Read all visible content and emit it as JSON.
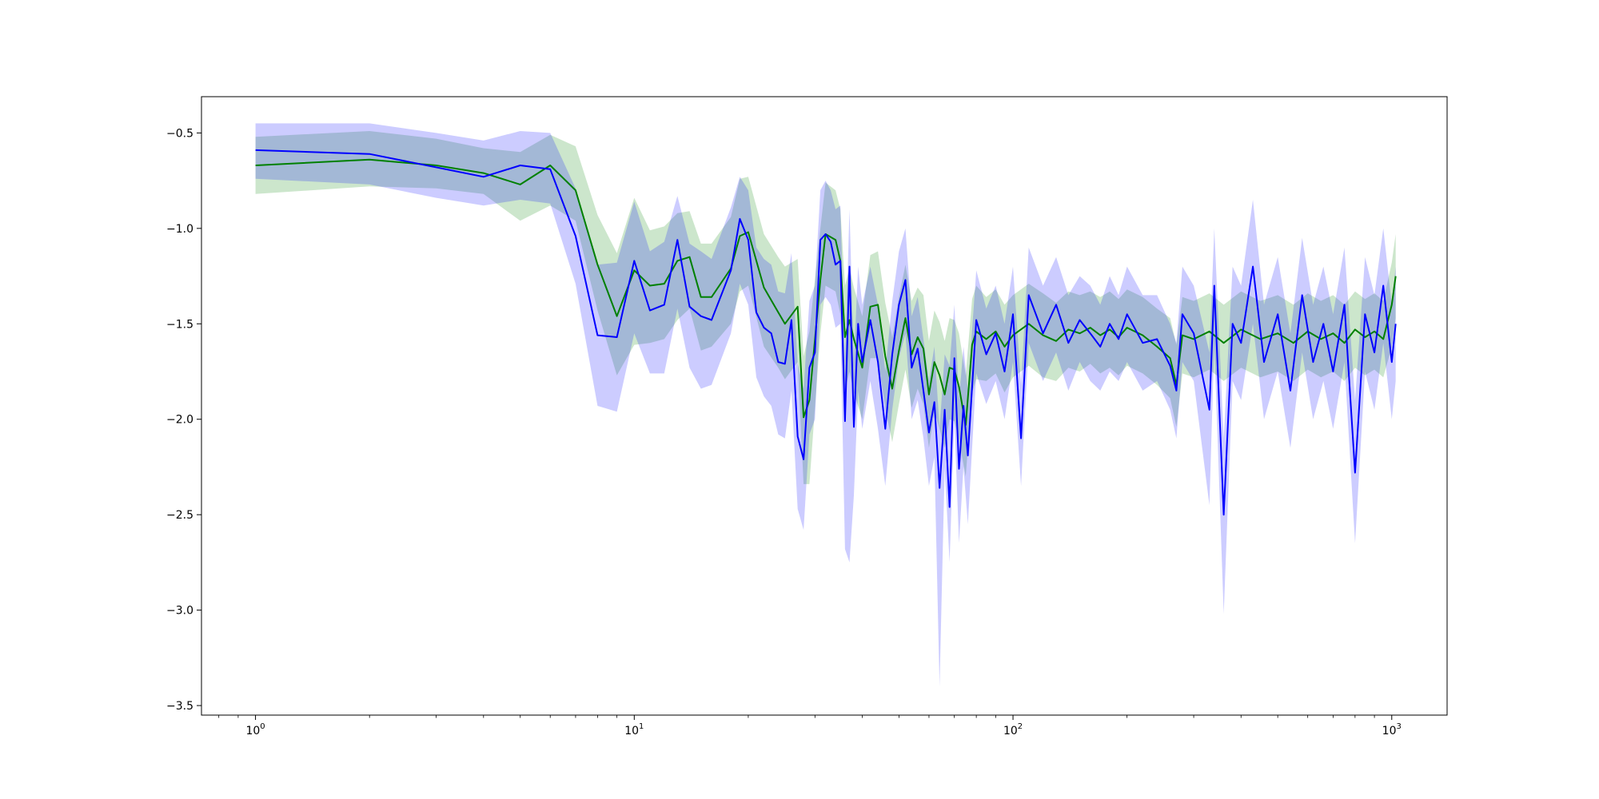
{
  "chart_data": {
    "type": "line",
    "title": "",
    "xlabel": "",
    "ylabel": "",
    "xscale": "log",
    "xlim": [
      0.72,
      1400
    ],
    "ylim": [
      -3.55,
      -0.31
    ],
    "grid": false,
    "legend": "none",
    "x_ticks": [
      {
        "value": 1,
        "base": "10",
        "exp": "0"
      },
      {
        "value": 10,
        "base": "10",
        "exp": "1"
      },
      {
        "value": 100,
        "base": "10",
        "exp": "2"
      },
      {
        "value": 1000,
        "base": "10",
        "exp": "3"
      }
    ],
    "y_ticks": [
      {
        "value": -0.5,
        "label": "−0.5"
      },
      {
        "value": -1.0,
        "label": "−1.0"
      },
      {
        "value": -1.5,
        "label": "−1.5"
      },
      {
        "value": -2.0,
        "label": "−2.0"
      },
      {
        "value": -2.5,
        "label": "−2.5"
      },
      {
        "value": -3.0,
        "label": "−3.0"
      },
      {
        "value": -3.5,
        "label": "−3.5"
      }
    ],
    "series": [
      {
        "color": "#008000",
        "band_color": "#008000",
        "band_opacity": 0.2,
        "points": [
          [
            1,
            -0.67,
            -0.82,
            -0.52
          ],
          [
            2,
            -0.64,
            -0.78,
            -0.49
          ],
          [
            3,
            -0.67,
            -0.79,
            -0.53
          ],
          [
            4,
            -0.71,
            -0.82,
            -0.58
          ],
          [
            5,
            -0.77,
            -0.96,
            -0.6
          ],
          [
            6,
            -0.67,
            -0.88,
            -0.51
          ],
          [
            7,
            -0.8,
            -0.96,
            -0.57
          ],
          [
            8,
            -1.19,
            -1.43,
            -0.93
          ],
          [
            9,
            -1.46,
            -1.77,
            -1.13
          ],
          [
            10,
            -1.22,
            -1.61,
            -0.84
          ],
          [
            11,
            -1.3,
            -1.6,
            -1.01
          ],
          [
            12,
            -1.29,
            -1.58,
            -0.99
          ],
          [
            13,
            -1.17,
            -1.48,
            -0.92
          ],
          [
            14,
            -1.15,
            -1.42,
            -0.91
          ],
          [
            15,
            -1.36,
            -1.64,
            -1.08
          ],
          [
            16,
            -1.36,
            -1.62,
            -1.08
          ],
          [
            18,
            -1.21,
            -1.5,
            -0.94
          ],
          [
            19,
            -1.04,
            -1.33,
            -0.74
          ],
          [
            20,
            -1.02,
            -1.3,
            -0.73
          ],
          [
            22,
            -1.31,
            -1.62,
            -1.03
          ],
          [
            24,
            -1.44,
            -1.73,
            -1.15
          ],
          [
            25,
            -1.5,
            -1.79,
            -1.2
          ],
          [
            27,
            -1.41,
            -1.7,
            -1.16
          ],
          [
            28,
            -1.99,
            -2.34,
            -1.67
          ],
          [
            29,
            -1.9,
            -2.34,
            -1.54
          ],
          [
            31,
            -1.27,
            -1.55,
            -1.0
          ],
          [
            32,
            -1.03,
            -1.3,
            -0.76
          ],
          [
            34,
            -1.06,
            -1.33,
            -0.8
          ],
          [
            35,
            -1.17,
            -1.45,
            -0.9
          ],
          [
            36,
            -1.57,
            -1.85,
            -1.3
          ],
          [
            37,
            -1.48,
            -1.75,
            -1.21
          ],
          [
            38,
            -1.58,
            -1.86,
            -1.31
          ],
          [
            40,
            -1.73,
            -2.0,
            -1.46
          ],
          [
            42,
            -1.41,
            -1.68,
            -1.14
          ],
          [
            44,
            -1.4,
            -1.68,
            -1.12
          ],
          [
            46,
            -1.67,
            -1.94,
            -1.39
          ],
          [
            48,
            -1.84,
            -2.12,
            -1.57
          ],
          [
            50,
            -1.64,
            -1.92,
            -1.36
          ],
          [
            52,
            -1.47,
            -1.74,
            -1.19
          ],
          [
            54,
            -1.66,
            -1.94,
            -1.38
          ],
          [
            56,
            -1.57,
            -1.84,
            -1.31
          ],
          [
            58,
            -1.63,
            -1.92,
            -1.35
          ],
          [
            60,
            -1.87,
            -2.15,
            -1.59
          ],
          [
            62,
            -1.7,
            -1.96,
            -1.43
          ],
          [
            64,
            -1.77,
            -2.05,
            -1.49
          ],
          [
            66,
            -1.87,
            -2.15,
            -1.59
          ],
          [
            68,
            -1.73,
            -2.0,
            -1.47
          ],
          [
            70,
            -1.74,
            -2.01,
            -1.48
          ],
          [
            72,
            -1.83,
            -2.11,
            -1.55
          ],
          [
            75,
            -2.03,
            -2.3,
            -1.77
          ],
          [
            78,
            -1.61,
            -1.86,
            -1.37
          ],
          [
            80,
            -1.54,
            -1.79,
            -1.3
          ],
          [
            85,
            -1.58,
            -1.8,
            -1.36
          ],
          [
            90,
            -1.54,
            -1.76,
            -1.32
          ],
          [
            95,
            -1.62,
            -1.86,
            -1.4
          ],
          [
            100,
            -1.56,
            -1.78,
            -1.35
          ],
          [
            110,
            -1.5,
            -1.72,
            -1.29
          ],
          [
            120,
            -1.56,
            -1.78,
            -1.34
          ],
          [
            130,
            -1.59,
            -1.8,
            -1.39
          ],
          [
            140,
            -1.53,
            -1.73,
            -1.33
          ],
          [
            150,
            -1.55,
            -1.75,
            -1.35
          ],
          [
            160,
            -1.52,
            -1.71,
            -1.33
          ],
          [
            170,
            -1.56,
            -1.76,
            -1.36
          ],
          [
            180,
            -1.53,
            -1.73,
            -1.33
          ],
          [
            190,
            -1.57,
            -1.77,
            -1.37
          ],
          [
            200,
            -1.52,
            -1.72,
            -1.32
          ],
          [
            220,
            -1.56,
            -1.76,
            -1.36
          ],
          [
            240,
            -1.62,
            -1.82,
            -1.42
          ],
          [
            260,
            -1.68,
            -1.89,
            -1.47
          ],
          [
            270,
            -1.82,
            -2.04,
            -1.61
          ],
          [
            280,
            -1.56,
            -1.76,
            -1.36
          ],
          [
            300,
            -1.58,
            -1.78,
            -1.38
          ],
          [
            330,
            -1.54,
            -1.74,
            -1.34
          ],
          [
            360,
            -1.6,
            -1.8,
            -1.4
          ],
          [
            400,
            -1.53,
            -1.73,
            -1.33
          ],
          [
            450,
            -1.58,
            -1.78,
            -1.38
          ],
          [
            500,
            -1.55,
            -1.75,
            -1.35
          ],
          [
            550,
            -1.6,
            -1.8,
            -1.4
          ],
          [
            600,
            -1.54,
            -1.74,
            -1.34
          ],
          [
            650,
            -1.58,
            -1.78,
            -1.38
          ],
          [
            700,
            -1.55,
            -1.75,
            -1.35
          ],
          [
            750,
            -1.6,
            -1.8,
            -1.4
          ],
          [
            800,
            -1.53,
            -1.73,
            -1.33
          ],
          [
            850,
            -1.57,
            -1.77,
            -1.37
          ],
          [
            900,
            -1.54,
            -1.74,
            -1.34
          ],
          [
            950,
            -1.58,
            -1.78,
            -1.38
          ],
          [
            1000,
            -1.4,
            -1.62,
            -1.18
          ],
          [
            1024,
            -1.25,
            -1.47,
            -1.03
          ]
        ]
      },
      {
        "color": "#0000ff",
        "band_color": "#0000ff",
        "band_opacity": 0.2,
        "points": [
          [
            1,
            -0.59,
            -0.74,
            -0.45
          ],
          [
            2,
            -0.61,
            -0.77,
            -0.45
          ],
          [
            3,
            -0.68,
            -0.84,
            -0.5
          ],
          [
            4,
            -0.73,
            -0.88,
            -0.54
          ],
          [
            5,
            -0.67,
            -0.85,
            -0.49
          ],
          [
            6,
            -0.69,
            -0.87,
            -0.5
          ],
          [
            7,
            -1.04,
            -1.29,
            -0.79
          ],
          [
            8,
            -1.56,
            -1.93,
            -1.19
          ],
          [
            9,
            -1.57,
            -1.96,
            -1.18
          ],
          [
            10,
            -1.17,
            -1.55,
            -0.86
          ],
          [
            11,
            -1.43,
            -1.76,
            -1.12
          ],
          [
            12,
            -1.4,
            -1.76,
            -1.07
          ],
          [
            13,
            -1.06,
            -1.42,
            -0.83
          ],
          [
            14,
            -1.41,
            -1.73,
            -1.08
          ],
          [
            15,
            -1.46,
            -1.84,
            -1.12
          ],
          [
            16,
            -1.48,
            -1.82,
            -1.16
          ],
          [
            18,
            -1.22,
            -1.55,
            -0.89
          ],
          [
            19,
            -0.95,
            -1.29,
            -0.73
          ],
          [
            20,
            -1.06,
            -1.4,
            -0.8
          ],
          [
            21,
            -1.44,
            -1.78,
            -1.1
          ],
          [
            22,
            -1.52,
            -1.88,
            -1.16
          ],
          [
            23,
            -1.55,
            -1.93,
            -1.19
          ],
          [
            24,
            -1.7,
            -2.08,
            -1.33
          ],
          [
            25,
            -1.71,
            -2.1,
            -1.34
          ],
          [
            26,
            -1.48,
            -1.85,
            -1.13
          ],
          [
            27,
            -2.09,
            -2.47,
            -1.71
          ],
          [
            28,
            -2.21,
            -2.58,
            -1.84
          ],
          [
            29,
            -1.73,
            -2.08,
            -1.38
          ],
          [
            30,
            -1.65,
            -2.0,
            -1.3
          ],
          [
            31,
            -1.06,
            -1.4,
            -0.8
          ],
          [
            32,
            -1.03,
            -1.36,
            -0.75
          ],
          [
            33,
            -1.07,
            -1.4,
            -0.8
          ],
          [
            34,
            -1.19,
            -1.52,
            -0.9
          ],
          [
            35,
            -1.17,
            -1.5,
            -0.88
          ],
          [
            36,
            -2.01,
            -2.68,
            -1.72
          ],
          [
            37,
            -1.2,
            -2.75,
            -0.9
          ],
          [
            38,
            -2.04,
            -2.4,
            -1.7
          ],
          [
            39,
            -1.5,
            -1.85,
            -1.2
          ],
          [
            40,
            -1.7,
            -2.05,
            -1.4
          ],
          [
            42,
            -1.48,
            -1.8,
            -1.2
          ],
          [
            44,
            -1.7,
            -2.05,
            -1.4
          ],
          [
            46,
            -2.05,
            -2.35,
            -1.75
          ],
          [
            48,
            -1.66,
            -1.95,
            -1.38
          ],
          [
            50,
            -1.4,
            -1.68,
            -1.12
          ],
          [
            52,
            -1.27,
            -1.55,
            -1.0
          ],
          [
            54,
            -1.73,
            -2.0,
            -1.46
          ],
          [
            56,
            -1.63,
            -1.9,
            -1.36
          ],
          [
            58,
            -1.85,
            -2.1,
            -1.58
          ],
          [
            60,
            -2.07,
            -2.35,
            -1.8
          ],
          [
            62,
            -1.91,
            -2.2,
            -1.62
          ],
          [
            64,
            -2.36,
            -3.4,
            -2.05
          ],
          [
            66,
            -1.95,
            -2.25,
            -1.66
          ],
          [
            68,
            -2.46,
            -2.75,
            -1.72
          ],
          [
            70,
            -1.68,
            -2.0,
            -1.4
          ],
          [
            72,
            -2.26,
            -2.65,
            -1.9
          ],
          [
            74,
            -1.93,
            -2.25,
            -1.62
          ],
          [
            76,
            -2.19,
            -2.55,
            -1.85
          ],
          [
            80,
            -1.48,
            -1.76,
            -1.22
          ],
          [
            85,
            -1.66,
            -1.92,
            -1.42
          ],
          [
            90,
            -1.55,
            -1.8,
            -1.3
          ],
          [
            95,
            -1.75,
            -2.0,
            -1.5
          ],
          [
            100,
            -1.45,
            -1.7,
            -1.2
          ],
          [
            105,
            -2.1,
            -2.35,
            -1.82
          ],
          [
            110,
            -1.35,
            -1.6,
            -1.1
          ],
          [
            120,
            -1.55,
            -1.8,
            -1.3
          ],
          [
            130,
            -1.4,
            -1.65,
            -1.15
          ],
          [
            140,
            -1.6,
            -1.85,
            -1.35
          ],
          [
            150,
            -1.48,
            -1.7,
            -1.25
          ],
          [
            160,
            -1.55,
            -1.8,
            -1.3
          ],
          [
            170,
            -1.62,
            -1.85,
            -1.4
          ],
          [
            180,
            -1.5,
            -1.75,
            -1.25
          ],
          [
            190,
            -1.58,
            -1.8,
            -1.35
          ],
          [
            200,
            -1.45,
            -1.7,
            -1.2
          ],
          [
            220,
            -1.6,
            -1.85,
            -1.35
          ],
          [
            240,
            -1.58,
            -1.8,
            -1.35
          ],
          [
            260,
            -1.72,
            -1.95,
            -1.5
          ],
          [
            270,
            -1.85,
            -2.1,
            -1.6
          ],
          [
            280,
            -1.45,
            -1.7,
            -1.2
          ],
          [
            300,
            -1.55,
            -1.8,
            -1.3
          ],
          [
            330,
            -1.95,
            -2.45,
            -1.65
          ],
          [
            340,
            -1.3,
            -1.6,
            -1.0
          ],
          [
            360,
            -2.5,
            -3.02,
            -2.1
          ],
          [
            380,
            -1.5,
            -1.8,
            -1.2
          ],
          [
            400,
            -1.6,
            -1.9,
            -1.3
          ],
          [
            430,
            -1.2,
            -1.5,
            -0.85
          ],
          [
            460,
            -1.7,
            -2.0,
            -1.4
          ],
          [
            500,
            -1.45,
            -1.75,
            -1.15
          ],
          [
            540,
            -1.85,
            -2.15,
            -1.55
          ],
          [
            580,
            -1.35,
            -1.65,
            -1.05
          ],
          [
            620,
            -1.7,
            -2.0,
            -1.4
          ],
          [
            660,
            -1.5,
            -1.8,
            -1.2
          ],
          [
            700,
            -1.75,
            -2.05,
            -1.45
          ],
          [
            750,
            -1.4,
            -1.7,
            -1.1
          ],
          [
            800,
            -2.28,
            -2.65,
            -1.9
          ],
          [
            850,
            -1.45,
            -1.75,
            -1.15
          ],
          [
            900,
            -1.65,
            -1.95,
            -1.35
          ],
          [
            950,
            -1.3,
            -1.6,
            -1.0
          ],
          [
            1000,
            -1.7,
            -2.0,
            -1.4
          ],
          [
            1024,
            -1.5,
            -1.8,
            -1.2
          ]
        ]
      }
    ]
  }
}
